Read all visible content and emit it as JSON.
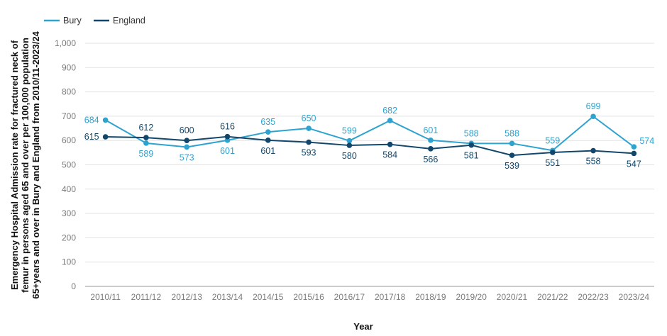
{
  "chart_data": {
    "type": "line",
    "xlabel": "Year",
    "ylabel": "Emergency Hospital Admission rate for fractured neck of femur in persons aged 65 and over per 100,000 population 65+years and over in Bury and England from 2010/11-2023/24",
    "ylim": [
      0,
      1000
    ],
    "yticks": [
      "0",
      "100",
      "200",
      "300",
      "400",
      "500",
      "600",
      "700",
      "800",
      "900",
      "1,000"
    ],
    "grid": true,
    "legend_position": "top-left",
    "categories": [
      "2010/11",
      "2011/12",
      "2012/13",
      "2013/14",
      "2014/15",
      "2015/16",
      "2016/17",
      "2017/18",
      "2018/19",
      "2019/20",
      "2020/21",
      "2021/22",
      "2022/23",
      "2023/24"
    ],
    "series": [
      {
        "name": "Bury",
        "color": "#2ea3d0",
        "values": [
          684,
          589,
          573,
          601,
          635,
          650,
          599,
          682,
          601,
          588,
          588,
          559,
          699,
          574
        ]
      },
      {
        "name": "England",
        "color": "#12476b",
        "values": [
          615,
          612,
          600,
          616,
          601,
          593,
          580,
          584,
          566,
          581,
          539,
          551,
          558,
          547
        ]
      }
    ]
  }
}
